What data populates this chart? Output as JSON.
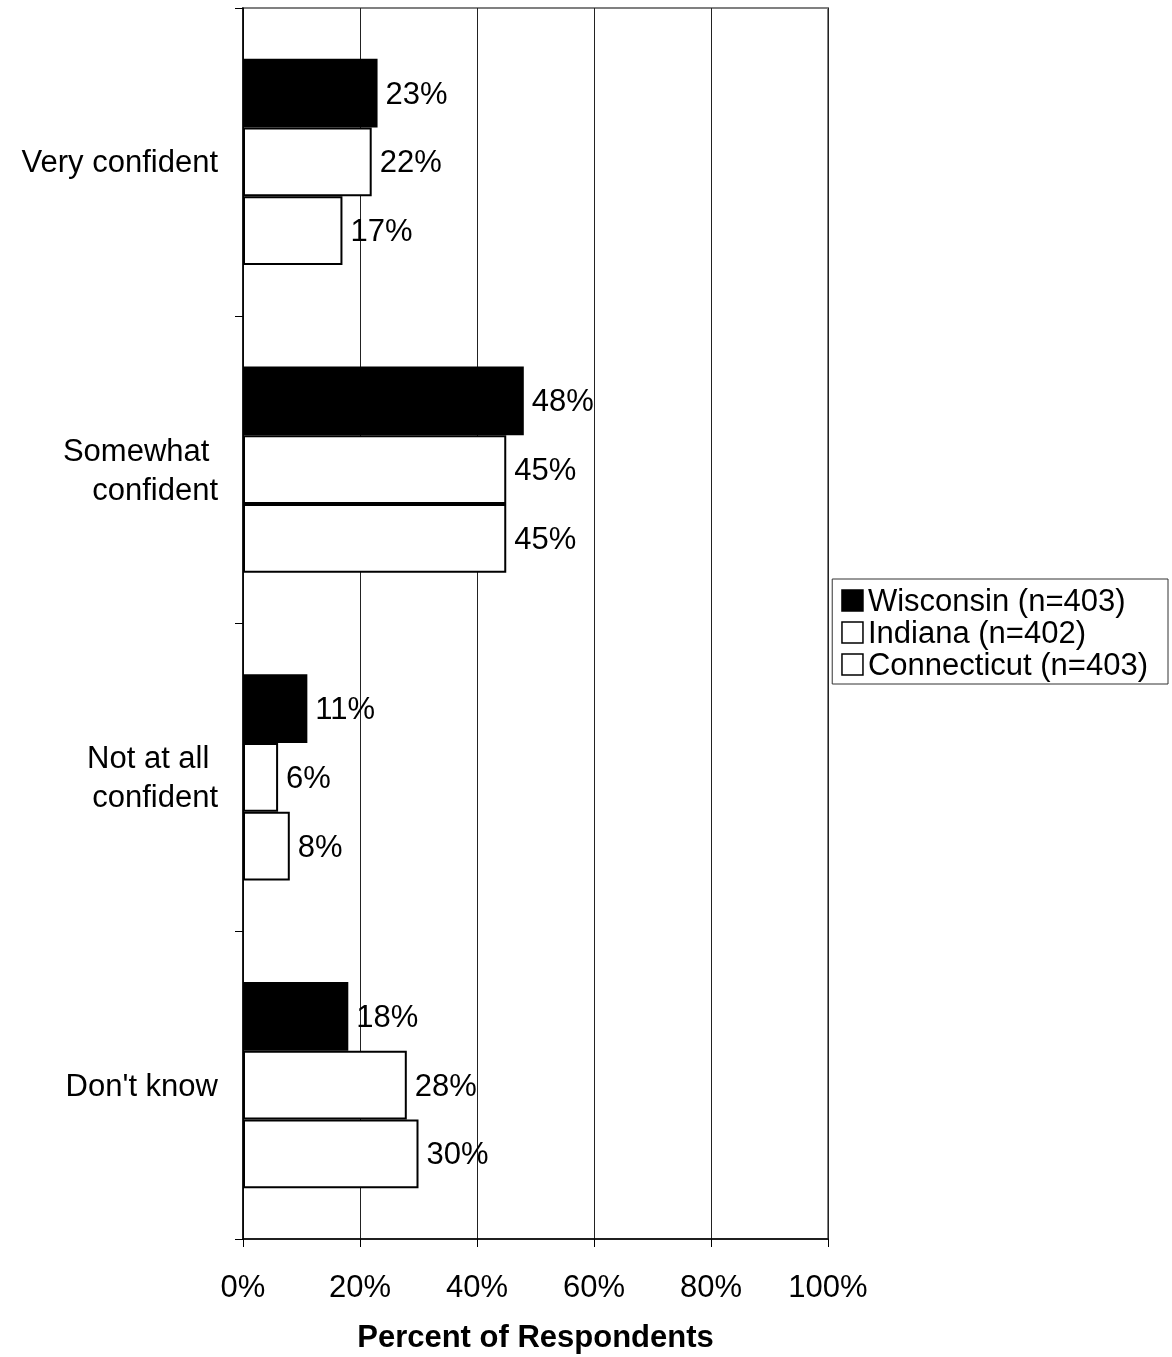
{
  "chart_data": {
    "type": "bar",
    "orientation": "horizontal",
    "xlabel": "Percent of Respondents",
    "categories": [
      "Very confident",
      "Somewhat confident",
      "Not at all confident",
      "Don't know"
    ],
    "series": [
      {
        "name": "Wisconsin (n=403)",
        "color": "#000000",
        "values": [
          23,
          48,
          11,
          18
        ],
        "value_labels": [
          "23%",
          "48%",
          "11%",
          "18%"
        ]
      },
      {
        "name": "Indiana (n=402)",
        "color": "#ffffff",
        "values": [
          22,
          45,
          6,
          28
        ],
        "value_labels": [
          "22%",
          "45%",
          "6%",
          "28%"
        ]
      },
      {
        "name": "Connecticut (n=403)",
        "color": "#ffffff",
        "values": [
          17,
          45,
          8,
          30
        ],
        "value_labels": [
          "17%",
          "45%",
          "8%",
          "30%"
        ]
      }
    ],
    "xlim": [
      0,
      100
    ],
    "xticks": [
      {
        "value": 0,
        "label": "0%"
      },
      {
        "value": 20,
        "label": "20%"
      },
      {
        "value": 40,
        "label": "40%"
      },
      {
        "value": 60,
        "label": "60%"
      },
      {
        "value": 80,
        "label": "80%"
      },
      {
        "value": 100,
        "label": "100%"
      }
    ],
    "grid": "x",
    "legend": "right"
  }
}
